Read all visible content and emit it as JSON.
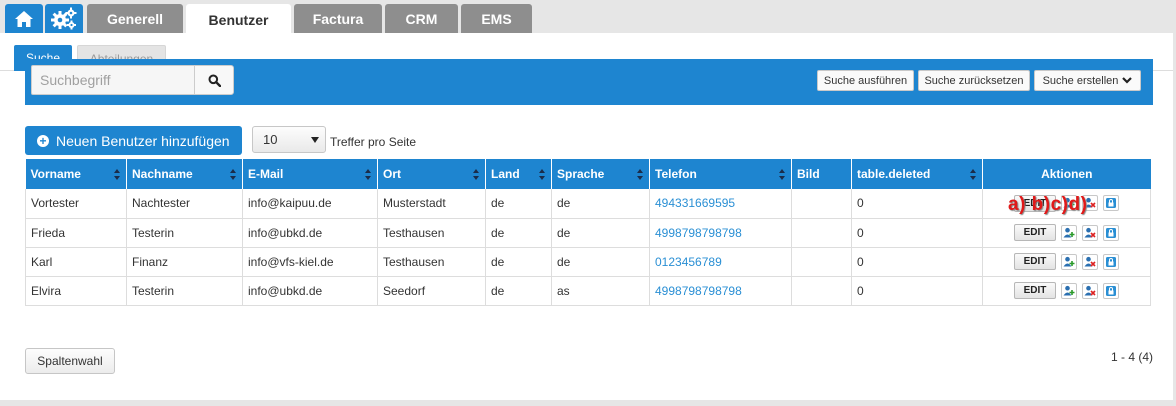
{
  "nav": {
    "home_icon": "home-icon",
    "settings_icon": "gears-icon",
    "tabs": [
      {
        "label": "Generell"
      },
      {
        "label": "Benutzer",
        "active": true
      },
      {
        "label": "Factura"
      },
      {
        "label": "CRM"
      },
      {
        "label": "EMS"
      }
    ]
  },
  "subtabs": [
    {
      "label": "Suche",
      "active": true
    },
    {
      "label": "Abteilungen"
    }
  ],
  "search": {
    "placeholder": "Suchbegriff",
    "value": "",
    "execute_label": "Suche ausführen",
    "reset_label": "Suche zurücksetzen",
    "create_label": "Suche erstellen"
  },
  "toolbar": {
    "add_user_label": "Neuen Benutzer hinzufügen",
    "per_page_value": "10",
    "per_page_label": "Treffer pro Seite"
  },
  "table": {
    "columns": [
      "Vorname",
      "Nachname",
      "E-Mail",
      "Ort",
      "Land",
      "Sprache",
      "Telefon",
      "Bild",
      "table.deleted",
      "Aktionen"
    ],
    "rows": [
      {
        "vorname": "Vortester",
        "nachname": "Nachtester",
        "email": "info@kaipuu.de",
        "ort": "Musterstadt",
        "land": "de",
        "sprache": "de",
        "telefon": "494331669595",
        "bild": "",
        "deleted": "0"
      },
      {
        "vorname": "Frieda",
        "nachname": "Testerin",
        "email": "info@ubkd.de",
        "ort": "Testhausen",
        "land": "de",
        "sprache": "de",
        "telefon": "4998798798798",
        "bild": "",
        "deleted": "0"
      },
      {
        "vorname": "Karl",
        "nachname": "Finanz",
        "email": "info@vfs-kiel.de",
        "ort": "Testhausen",
        "land": "de",
        "sprache": "de",
        "telefon": "0123456789",
        "bild": "",
        "deleted": "0"
      },
      {
        "vorname": "Elvira",
        "nachname": "Testerin",
        "email": "info@ubkd.de",
        "ort": "Seedorf",
        "land": "de",
        "sprache": "as",
        "telefon": "4998798798798",
        "bild": "",
        "deleted": "0"
      }
    ],
    "edit_label": "EDIT",
    "annotation": "a) b)c)d)"
  },
  "footer": {
    "column_select_label": "Spaltenwahl",
    "pagination": "1 - 4 (4)"
  },
  "colors": {
    "accent": "#1e85d0",
    "tab_inactive": "#8e8e8e",
    "link": "#2a8fd4",
    "annotation": "#e11919"
  }
}
